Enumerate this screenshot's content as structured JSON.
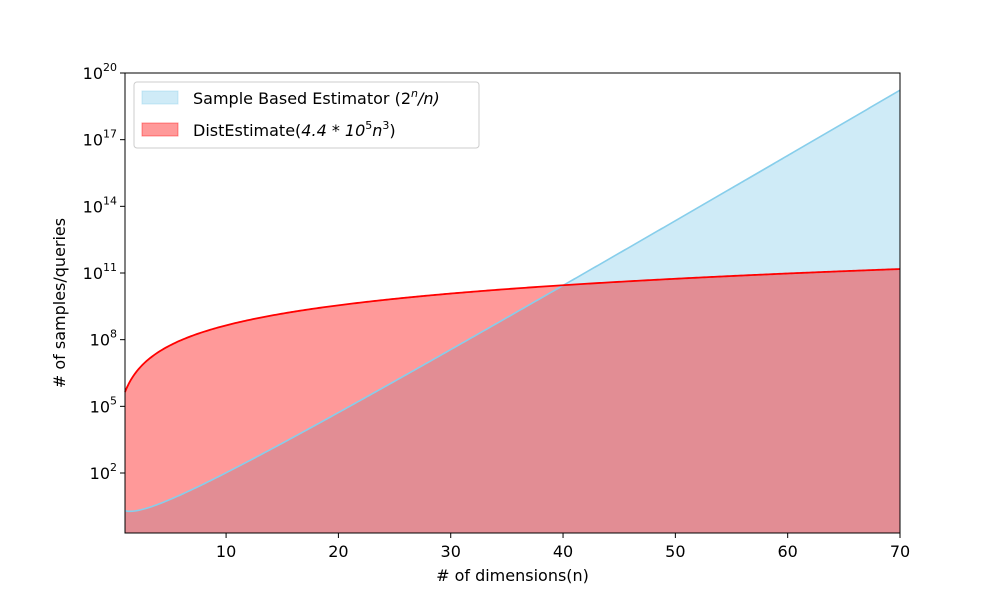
{
  "chart_data": {
    "type": "area",
    "x_range": [
      1,
      70
    ],
    "y_scale": "log",
    "y_range_exponent": [
      0,
      20
    ],
    "xlabel": "# of dimensions(n)",
    "ylabel": "# of samples/queries",
    "x_ticks": [
      10,
      20,
      30,
      40,
      50,
      60,
      70
    ],
    "x_tick_labels": [
      "10",
      "20",
      "30",
      "40",
      "50",
      "60",
      "70"
    ],
    "y_ticks_exponent": [
      2,
      5,
      8,
      11,
      14,
      17,
      20
    ],
    "y_tick_base": "10",
    "grid": false,
    "legend_position": "upper-left",
    "series": [
      {
        "name": "Sample Based Estimator (2^n/n)",
        "legend_main": "Sample Based Estimator (",
        "legend_b": "2",
        "legend_sup": "n",
        "legend_rest": "/n)",
        "formula": "2^n / n",
        "color": "#87ceeb",
        "fill_color": "#87ceeb",
        "fill_opacity": 0.4,
        "x": [
          1,
          2,
          5,
          10,
          20,
          30,
          40,
          50,
          60,
          70
        ],
        "y": [
          2,
          2,
          6.4,
          102.4,
          52429,
          35800000.0,
          27500000000.0,
          22500000000000.0,
          1.92e+16,
          1.69e+19
        ]
      },
      {
        "name": "DistEstimate(4.4*10^5n^3)",
        "legend_main": "DistEstimate(",
        "legend_a": "4.4 * 10",
        "legend_sup1": "5",
        "legend_b": "n",
        "legend_sup2": "3",
        "legend_rest": ")",
        "formula": "4.4e5 * n^3",
        "color": "#ff0000",
        "fill_color": "#ff0000",
        "fill_opacity": 0.4,
        "x": [
          1,
          2,
          5,
          10,
          20,
          30,
          40,
          50,
          60,
          70
        ],
        "y": [
          440000.0,
          3520000.0,
          55000000.0,
          440000000.0,
          3520000000.0,
          11880000000.0,
          28160000000.0,
          55000000000.0,
          95040000000.0,
          150920000000.0
        ]
      }
    ]
  }
}
